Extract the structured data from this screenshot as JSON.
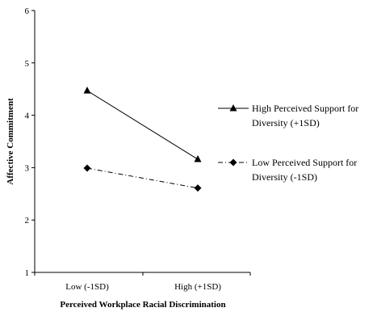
{
  "chart_data": {
    "type": "line",
    "title": "",
    "xlabel": "Perceived Workplace Racial Discrimination",
    "ylabel": "Affective Commitment",
    "categories": [
      "Low (-1SD)",
      "High (+1SD)"
    ],
    "ylim": [
      1,
      6
    ],
    "yticks": [
      "1",
      "2",
      "3",
      "4",
      "5",
      "6"
    ],
    "grid": false,
    "legend_position": "right",
    "series": [
      {
        "name": "High Perceived Support for Diversity (+1SD)",
        "legend_lines": [
          "High Perceived Support for",
          "Diversity (+1SD)"
        ],
        "values": [
          4.47,
          3.16
        ],
        "marker": "triangle",
        "line_style": "solid",
        "color": "#000000"
      },
      {
        "name": "Low Perceived Support for Diversity (-1SD)",
        "legend_lines": [
          "Low Perceived Support for",
          "Diversity (-1SD)"
        ],
        "values": [
          2.99,
          2.61
        ],
        "marker": "diamond",
        "line_style": "dash-dot",
        "color": "#000000"
      }
    ]
  }
}
